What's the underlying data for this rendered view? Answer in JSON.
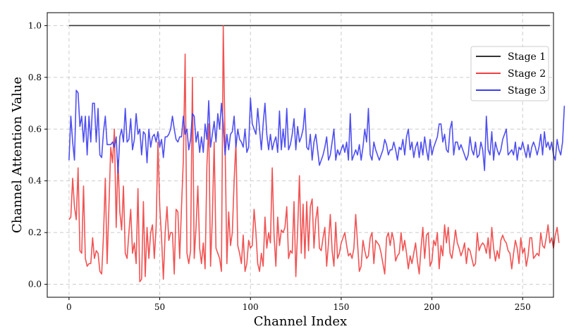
{
  "chart_data": {
    "type": "line",
    "xlabel": "Channel Index",
    "ylabel": "Channel Attention Value",
    "xlim": [
      -12,
      267
    ],
    "ylim": [
      -0.05,
      1.05
    ],
    "xticks": [
      0,
      50,
      100,
      150,
      200,
      250
    ],
    "yticks": [
      0.0,
      0.2,
      0.4,
      0.6,
      0.8,
      1.0
    ],
    "ytick_labels": [
      "0.0",
      "0.2",
      "0.4",
      "0.6",
      "0.8",
      "1.0"
    ],
    "grid": true,
    "legend_position": "upper-right",
    "series": [
      {
        "name": "Stage 1",
        "color": "#333333",
        "x_start": 0,
        "values": [
          1.0,
          1.0,
          1.0,
          1.0,
          1.0,
          1.0,
          1.0,
          1.0,
          1.0,
          1.0,
          1.0,
          1.0,
          1.0,
          1.0,
          1.0,
          1.0,
          1.0,
          1.0,
          1.0,
          1.0,
          1.0,
          1.0,
          1.0,
          1.0,
          1.0,
          1.0,
          1.0,
          1.0,
          1.0,
          1.0,
          1.0,
          1.0,
          1.0,
          1.0,
          1.0,
          1.0,
          1.0,
          1.0,
          1.0,
          1.0,
          1.0,
          1.0,
          1.0,
          1.0,
          1.0,
          1.0,
          1.0,
          1.0,
          1.0,
          1.0,
          1.0,
          1.0,
          1.0,
          1.0,
          1.0,
          1.0,
          1.0,
          1.0,
          1.0,
          1.0,
          1.0,
          1.0,
          1.0,
          1.0,
          1.0,
          1.0,
          1.0,
          1.0,
          1.0,
          1.0,
          1.0,
          1.0,
          1.0,
          1.0,
          1.0,
          1.0,
          1.0,
          1.0,
          1.0,
          1.0,
          1.0,
          1.0,
          1.0,
          1.0,
          1.0,
          1.0,
          1.0,
          1.0,
          1.0,
          1.0,
          1.0,
          1.0,
          1.0,
          1.0,
          1.0,
          1.0,
          1.0,
          1.0,
          1.0,
          1.0,
          1.0,
          1.0,
          1.0,
          1.0,
          1.0,
          1.0,
          1.0,
          1.0,
          1.0,
          1.0,
          1.0,
          1.0,
          1.0,
          1.0,
          1.0,
          1.0,
          1.0,
          1.0,
          1.0,
          1.0,
          1.0,
          1.0,
          1.0,
          1.0,
          1.0,
          1.0,
          1.0,
          1.0,
          1.0,
          1.0,
          1.0,
          1.0,
          1.0,
          1.0,
          1.0,
          1.0,
          1.0,
          1.0,
          1.0,
          1.0,
          1.0,
          1.0,
          1.0,
          1.0,
          1.0,
          1.0,
          1.0,
          1.0,
          1.0,
          1.0,
          1.0,
          1.0,
          1.0,
          1.0,
          1.0,
          1.0,
          1.0,
          1.0,
          1.0,
          1.0,
          1.0,
          1.0,
          1.0,
          1.0,
          1.0,
          1.0,
          1.0,
          1.0,
          1.0,
          1.0,
          1.0,
          1.0,
          1.0,
          1.0,
          1.0,
          1.0,
          1.0,
          1.0,
          1.0,
          1.0,
          1.0,
          1.0,
          1.0,
          1.0,
          1.0,
          1.0,
          1.0,
          1.0,
          1.0,
          1.0,
          1.0,
          1.0,
          1.0,
          1.0,
          1.0,
          1.0,
          1.0,
          1.0,
          1.0,
          1.0,
          1.0,
          1.0,
          1.0,
          1.0,
          1.0,
          1.0,
          1.0,
          1.0,
          1.0,
          1.0,
          1.0,
          1.0,
          1.0,
          1.0,
          1.0,
          1.0,
          1.0,
          1.0,
          1.0,
          1.0,
          1.0,
          1.0,
          1.0,
          1.0,
          1.0,
          1.0,
          1.0,
          1.0,
          1.0,
          1.0,
          1.0,
          1.0,
          1.0,
          1.0,
          1.0,
          1.0,
          1.0,
          1.0,
          1.0,
          1.0,
          1.0,
          1.0,
          1.0,
          1.0,
          1.0,
          1.0,
          1.0,
          1.0,
          1.0,
          1.0,
          1.0,
          1.0,
          1.0,
          1.0,
          1.0,
          1.0,
          1.0,
          1.0,
          1.0,
          1.0,
          1.0,
          1.0,
          1.0,
          1.0,
          1.0,
          1.0
        ]
      },
      {
        "name": "Stage 2",
        "color": "#f04040",
        "x_start": 0,
        "values": [
          0.25,
          0.26,
          0.41,
          0.3,
          0.25,
          0.45,
          0.13,
          0.12,
          0.38,
          0.1,
          0.07,
          0.08,
          0.08,
          0.18,
          0.1,
          0.13,
          0.12,
          0.05,
          0.04,
          0.19,
          0.41,
          0.08,
          0.3,
          0.53,
          0.47,
          0.6,
          0.22,
          0.48,
          0.28,
          0.21,
          0.38,
          0.12,
          0.1,
          0.2,
          0.29,
          0.12,
          0.16,
          0.08,
          0.37,
          0.01,
          0.02,
          0.32,
          0.03,
          0.22,
          0.1,
          0.2,
          0.23,
          0.1,
          0.22,
          0.55,
          0.3,
          0.18,
          0.02,
          0.2,
          0.3,
          0.17,
          0.2,
          0.2,
          0.04,
          0.29,
          0.28,
          0.1,
          0.3,
          0.48,
          0.89,
          0.12,
          0.08,
          0.13,
          0.8,
          0.1,
          0.22,
          0.38,
          0.14,
          0.08,
          0.16,
          0.06,
          0.46,
          0.62,
          0.07,
          0.26,
          0.55,
          0.14,
          0.12,
          0.1,
          0.05,
          1.0,
          0.55,
          0.08,
          0.28,
          0.15,
          0.2,
          0.4,
          0.55,
          0.15,
          0.12,
          0.08,
          0.19,
          0.05,
          0.08,
          0.17,
          0.14,
          0.15,
          0.29,
          0.2,
          0.08,
          0.05,
          0.12,
          0.07,
          0.26,
          0.14,
          0.2,
          0.16,
          0.45,
          0.19,
          0.07,
          0.26,
          0.15,
          0.21,
          0.2,
          0.22,
          0.3,
          0.1,
          0.13,
          0.12,
          0.32,
          0.03,
          0.21,
          0.42,
          0.12,
          0.31,
          0.1,
          0.32,
          0.13,
          0.3,
          0.33,
          0.14,
          0.25,
          0.3,
          0.14,
          0.13,
          0.18,
          0.22,
          0.07,
          0.16,
          0.27,
          0.13,
          0.07,
          0.24,
          0.1,
          0.12,
          0.16,
          0.18,
          0.2,
          0.15,
          0.11,
          0.12,
          0.1,
          0.14,
          0.27,
          0.16,
          0.05,
          0.07,
          0.17,
          0.13,
          0.1,
          0.11,
          0.18,
          0.2,
          0.08,
          0.17,
          0.16,
          0.15,
          0.12,
          0.08,
          0.04,
          0.18,
          0.2,
          0.15,
          0.2,
          0.17,
          0.09,
          0.11,
          0.12,
          0.2,
          0.13,
          0.17,
          0.12,
          0.06,
          0.11,
          0.08,
          0.12,
          0.16,
          0.09,
          0.04,
          0.14,
          0.22,
          0.1,
          0.19,
          0.2,
          0.07,
          0.09,
          0.17,
          0.15,
          0.2,
          0.06,
          0.15,
          0.11,
          0.23,
          0.16,
          0.22,
          0.12,
          0.1,
          0.15,
          0.21,
          0.16,
          0.14,
          0.11,
          0.13,
          0.16,
          0.08,
          0.14,
          0.13,
          0.1,
          0.07,
          0.08,
          0.2,
          0.13,
          0.15,
          0.16,
          0.15,
          0.12,
          0.18,
          0.1,
          0.22,
          0.14,
          0.09,
          0.13,
          0.1,
          0.17,
          0.19,
          0.17,
          0.16,
          0.13,
          0.12,
          0.06,
          0.12,
          0.17,
          0.14,
          0.08,
          0.18,
          0.12,
          0.14,
          0.07,
          0.11,
          0.18,
          0.18,
          0.1,
          0.11,
          0.12,
          0.11,
          0.2,
          0.15,
          0.14,
          0.18,
          0.23,
          0.16,
          0.18,
          0.14,
          0.19,
          0.22,
          0.16
        ]
      },
      {
        "name": "Stage 3",
        "color": "#3c3cf0",
        "x_start": 0,
        "values": [
          0.48,
          0.65,
          0.55,
          0.48,
          0.75,
          0.74,
          0.61,
          0.65,
          0.55,
          0.65,
          0.5,
          0.65,
          0.55,
          0.7,
          0.7,
          0.55,
          0.68,
          0.5,
          0.49,
          0.59,
          0.65,
          0.54,
          0.54,
          0.54,
          0.55,
          0.53,
          0.57,
          0.43,
          0.57,
          0.6,
          0.55,
          0.68,
          0.55,
          0.56,
          0.64,
          0.52,
          0.56,
          0.66,
          0.58,
          0.6,
          0.5,
          0.59,
          0.58,
          0.47,
          0.6,
          0.53,
          0.57,
          0.58,
          0.55,
          0.59,
          0.53,
          0.56,
          0.49,
          0.57,
          0.57,
          0.58,
          0.6,
          0.65,
          0.6,
          0.56,
          0.55,
          0.57,
          0.57,
          0.65,
          0.58,
          0.6,
          0.52,
          0.56,
          0.66,
          0.65,
          0.55,
          0.59,
          0.51,
          0.57,
          0.51,
          0.62,
          0.56,
          0.71,
          0.53,
          0.58,
          0.63,
          0.55,
          0.66,
          0.6,
          0.7,
          0.62,
          0.5,
          0.58,
          0.52,
          0.58,
          0.59,
          0.65,
          0.53,
          0.6,
          0.56,
          0.55,
          0.53,
          0.6,
          0.51,
          0.53,
          0.72,
          0.62,
          0.6,
          0.58,
          0.68,
          0.6,
          0.52,
          0.62,
          0.7,
          0.58,
          0.52,
          0.58,
          0.52,
          0.55,
          0.57,
          0.51,
          0.67,
          0.52,
          0.6,
          0.53,
          0.68,
          0.52,
          0.54,
          0.58,
          0.64,
          0.52,
          0.61,
          0.55,
          0.57,
          0.6,
          0.68,
          0.53,
          0.52,
          0.58,
          0.48,
          0.55,
          0.58,
          0.52,
          0.46,
          0.48,
          0.5,
          0.53,
          0.57,
          0.48,
          0.5,
          0.55,
          0.6,
          0.48,
          0.52,
          0.5,
          0.52,
          0.54,
          0.51,
          0.55,
          0.48,
          0.66,
          0.48,
          0.5,
          0.52,
          0.5,
          0.54,
          0.48,
          0.53,
          0.6,
          0.55,
          0.68,
          0.5,
          0.48,
          0.55,
          0.52,
          0.5,
          0.48,
          0.5,
          0.52,
          0.56,
          0.54,
          0.5,
          0.52,
          0.52,
          0.55,
          0.52,
          0.48,
          0.53,
          0.52,
          0.56,
          0.5,
          0.57,
          0.6,
          0.52,
          0.55,
          0.49,
          0.53,
          0.55,
          0.49,
          0.55,
          0.5,
          0.57,
          0.52,
          0.48,
          0.56,
          0.5,
          0.53,
          0.55,
          0.57,
          0.62,
          0.62,
          0.55,
          0.58,
          0.52,
          0.51,
          0.6,
          0.63,
          0.5,
          0.55,
          0.55,
          0.52,
          0.54,
          0.52,
          0.5,
          0.48,
          0.5,
          0.57,
          0.52,
          0.5,
          0.55,
          0.49,
          0.5,
          0.55,
          0.52,
          0.44,
          0.65,
          0.52,
          0.5,
          0.59,
          0.48,
          0.55,
          0.52,
          0.5,
          0.52,
          0.56,
          0.58,
          0.6,
          0.5,
          0.51,
          0.52,
          0.5,
          0.55,
          0.48,
          0.53,
          0.52,
          0.55,
          0.52,
          0.49,
          0.54,
          0.49,
          0.53,
          0.55,
          0.53,
          0.5,
          0.53,
          0.58,
          0.5,
          0.59,
          0.53,
          0.55,
          0.52,
          0.55,
          0.5,
          0.48,
          0.56,
          0.52,
          0.5,
          0.55,
          0.69
        ]
      }
    ]
  }
}
